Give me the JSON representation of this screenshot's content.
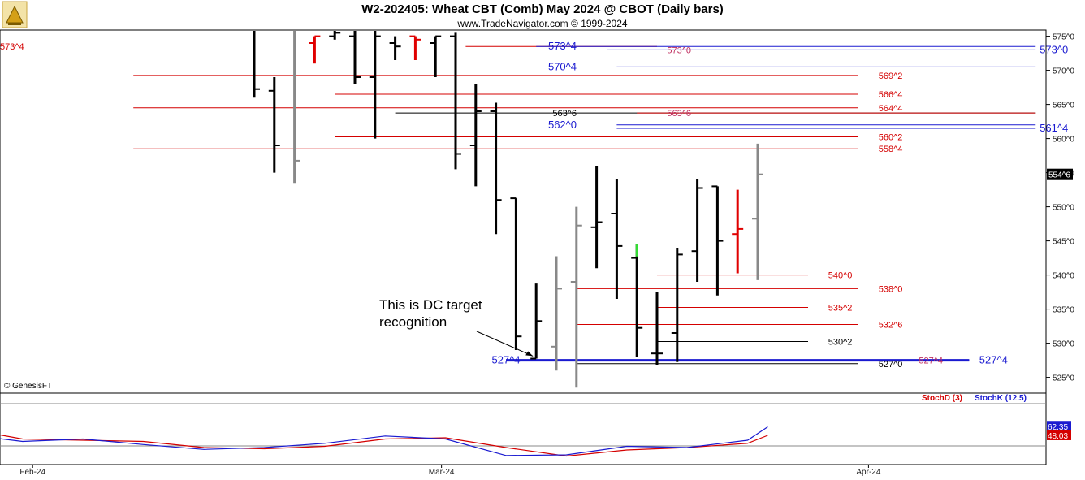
{
  "chart_data": {
    "type": "ohlc",
    "title": "W2-202405:  Wheat CBT (Comb) May 2024 @ CBOT  (Daily bars)",
    "subtitle": "www.TradeNavigator.com © 1999-2024",
    "copyright": "© GenesisFT",
    "ylim": [
      523,
      576
    ],
    "y_ticks": [
      "525^0",
      "530^0",
      "535^0",
      "540^0",
      "545^0",
      "550^0",
      "555^0",
      "560^0",
      "565^0",
      "570^0",
      "575^0"
    ],
    "y_tick_values": [
      525,
      530,
      535,
      540,
      545,
      550,
      555,
      560,
      565,
      570,
      575
    ],
    "x_ticks": [
      {
        "label": "Feb-24",
        "bar": -11
      },
      {
        "label": "Mar-24",
        "bar": 9.3
      },
      {
        "label": "Apr-24",
        "bar": 30.5
      }
    ],
    "last_price_label": "554^6",
    "last_price": 554.75,
    "bars": [
      {
        "bar": 0,
        "open": 577.0,
        "high": 578.0,
        "low": 566.0,
        "close": 567.25,
        "color": "black"
      },
      {
        "bar": 1,
        "open": 567.0,
        "high": 569.0,
        "low": 555.0,
        "close": 559.0,
        "color": "black"
      },
      {
        "bar": 2,
        "open": 576.0,
        "high": 577.0,
        "low": 553.5,
        "close": 556.75,
        "color": "gray"
      },
      {
        "bar": 3,
        "open": 574.0,
        "high": 575.0,
        "low": 571.0,
        "close": 575.0,
        "color": "red"
      },
      {
        "bar": 4,
        "open": 575.0,
        "high": 577.0,
        "low": 574.5,
        "close": 575.5,
        "color": "black"
      },
      {
        "bar": 5,
        "open": 575.0,
        "high": 576.0,
        "low": 568.0,
        "close": 569.0,
        "color": "black"
      },
      {
        "bar": 6,
        "open": 569.0,
        "high": 576.0,
        "low": 560.0,
        "close": 575.0,
        "color": "black"
      },
      {
        "bar": 7,
        "open": 574.0,
        "high": 575.0,
        "low": 571.5,
        "close": 573.5,
        "color": "black"
      },
      {
        "bar": 8,
        "open": 575.0,
        "high": 575.0,
        "low": 571.5,
        "close": 574.5,
        "color": "red"
      },
      {
        "bar": 9,
        "open": 574.0,
        "high": 575.0,
        "low": 569.0,
        "close": 575.0,
        "color": "black"
      },
      {
        "bar": 10,
        "open": 575.0,
        "high": 575.5,
        "low": 555.5,
        "close": 557.75,
        "color": "black"
      },
      {
        "bar": 11,
        "open": 559.0,
        "high": 568.0,
        "low": 553.0,
        "close": 564.0,
        "color": "black"
      },
      {
        "bar": 12,
        "open": 564.0,
        "high": 565.25,
        "low": 546.0,
        "close": 551.0,
        "color": "black"
      },
      {
        "bar": 13,
        "open": 551.25,
        "high": 551.25,
        "low": 529.0,
        "close": 531.0,
        "color": "black"
      },
      {
        "bar": 14,
        "open": 527.75,
        "high": 538.75,
        "low": 527.75,
        "close": 533.25,
        "color": "black"
      },
      {
        "bar": 15,
        "open": 529.5,
        "high": 542.75,
        "low": 526.0,
        "close": 538.0,
        "color": "gray"
      },
      {
        "bar": 16,
        "open": 539.0,
        "high": 550.0,
        "low": 523.5,
        "close": 547.25,
        "color": "gray"
      },
      {
        "bar": 17,
        "open": 547.0,
        "high": 556.0,
        "low": 541.0,
        "close": 547.75,
        "color": "black"
      },
      {
        "bar": 18,
        "open": 549.0,
        "high": 554.0,
        "low": 536.5,
        "close": 544.25,
        "color": "black"
      },
      {
        "bar": 19,
        "open": 542.5,
        "high": 544.5,
        "low": 528.0,
        "close": 532.25,
        "color": "black",
        "highlight": "#33dd33"
      },
      {
        "bar": 20,
        "open": 528.5,
        "high": 537.5,
        "low": 526.75,
        "close": 528.5,
        "color": "black"
      },
      {
        "bar": 21,
        "open": 531.5,
        "high": 544.0,
        "low": 527.25,
        "close": 543.0,
        "color": "black"
      },
      {
        "bar": 22,
        "open": 543.5,
        "high": 554.0,
        "low": 539.0,
        "close": 552.75,
        "color": "black"
      },
      {
        "bar": 23,
        "open": 553.0,
        "high": 553.0,
        "low": 537.0,
        "close": 545.0,
        "color": "black"
      },
      {
        "bar": 24,
        "open": 546.0,
        "high": 552.5,
        "low": 540.25,
        "close": 546.75,
        "color": "red"
      },
      {
        "bar": 25,
        "open": 548.25,
        "high": 559.25,
        "low": 539.25,
        "close": 554.75,
        "color": "gray"
      }
    ],
    "levels": [
      {
        "label": "573^4",
        "price": 573.5,
        "from_bar": 10.5,
        "to_bar": 20.0,
        "color": "#d40000",
        "style": "red"
      },
      {
        "label": "573^4",
        "price": 573.5,
        "from_bar": 14.0,
        "to_bar": 38.8,
        "color": "#1a1ad0",
        "style": "blue",
        "label_at": "left",
        "label_bar": 15.0
      },
      {
        "label": "573^0",
        "price": 573.0,
        "from_bar": 17.5,
        "to_bar": 38.8,
        "color": "#1a1ad0",
        "style": "pink",
        "label_bar": 20.5
      },
      {
        "label": "573^0",
        "price": 573.0,
        "from_bar": 38.8,
        "to_bar": 38.8,
        "color": "#1a1ad0",
        "style": "blue",
        "label_bar": 39.0
      },
      {
        "label": "570^4",
        "price": 570.5,
        "from_bar": 18.0,
        "to_bar": 38.8,
        "color": "#1a1ad0",
        "style": "blue",
        "label_at": "left",
        "label_bar": 15.0
      },
      {
        "label": "569^2",
        "price": 569.25,
        "from_bar": -6.0,
        "to_bar": 30.0,
        "color": "#d40000",
        "style": "red",
        "label_bar": 31.0
      },
      {
        "label": "566^4",
        "price": 566.5,
        "from_bar": 4.0,
        "to_bar": 30.0,
        "color": "#d40000",
        "style": "red",
        "label_bar": 31.0
      },
      {
        "label": "564^4",
        "price": 564.5,
        "from_bar": -6.0,
        "to_bar": 30.0,
        "color": "#d40000",
        "style": "red",
        "label_bar": 31.0
      },
      {
        "label": "563^6",
        "price": 563.75,
        "from_bar": 7.0,
        "to_bar": 38.8,
        "color": "#000",
        "style": "thin",
        "label_at": "left",
        "label_bar": 15.0
      },
      {
        "label": "563^6",
        "price": 563.75,
        "from_bar": 19.0,
        "to_bar": 38.8,
        "color": "#d40000",
        "style": "pink",
        "label_bar": 20.5
      },
      {
        "label": "562^0",
        "price": 562.0,
        "from_bar": 18.0,
        "to_bar": 38.8,
        "color": "#1a1ad0",
        "style": "blue",
        "label_at": "left",
        "label_bar": 15.0
      },
      {
        "label": "561^4",
        "price": 561.5,
        "from_bar": 18.0,
        "to_bar": 38.8,
        "color": "#1a1ad0",
        "style": "blue",
        "label_bar": 39.0
      },
      {
        "label": "560^2",
        "price": 560.25,
        "from_bar": 4.0,
        "to_bar": 30.0,
        "color": "#d40000",
        "style": "red",
        "label_bar": 31.0
      },
      {
        "label": "558^4",
        "price": 558.5,
        "from_bar": -6.0,
        "to_bar": 30.0,
        "color": "#d40000",
        "style": "red",
        "label_bar": 31.0
      },
      {
        "label": "540^0",
        "price": 540.0,
        "from_bar": 20.0,
        "to_bar": 27.5,
        "color": "#d40000",
        "style": "red",
        "label_bar": 28.5
      },
      {
        "label": "538^0",
        "price": 538.0,
        "from_bar": 16.0,
        "to_bar": 30.0,
        "color": "#d40000",
        "style": "red",
        "label_bar": 31.0
      },
      {
        "label": "535^2",
        "price": 535.25,
        "from_bar": 20.0,
        "to_bar": 27.5,
        "color": "#d40000",
        "style": "red",
        "label_bar": 28.5
      },
      {
        "label": "532^6",
        "price": 532.75,
        "from_bar": 16.0,
        "to_bar": 30.0,
        "color": "#d40000",
        "style": "red",
        "label_bar": 31.0
      },
      {
        "label": "530^2",
        "price": 530.25,
        "from_bar": 20.0,
        "to_bar": 27.5,
        "color": "#000",
        "style": "black",
        "label_bar": 28.5
      },
      {
        "label": "527^0",
        "price": 527.0,
        "from_bar": 16.0,
        "to_bar": 30.0,
        "color": "#000",
        "style": "black",
        "label_bar": 31.0
      },
      {
        "label": "527^4",
        "price": 527.5,
        "from_bar": 12.5,
        "to_bar": 35.5,
        "color": "#1a1ad0",
        "style": "thick",
        "label_at": "left",
        "label_bar": 12.2
      },
      {
        "label": "527^4",
        "price": 527.5,
        "from_bar": 32.5,
        "to_bar": 35.5,
        "color": "#1a1ad0",
        "style": "pink",
        "label_bar": 33.0
      },
      {
        "label": "527^4",
        "price": 527.5,
        "from_bar": 35.5,
        "to_bar": 35.5,
        "color": "#1a1ad0",
        "style": "blue",
        "label_bar": 36.0
      }
    ],
    "annotation": {
      "lines": [
        "This is DC target",
        "recognition"
      ],
      "arrow_to_bar": 14,
      "arrow_to_price": 528.0
    },
    "stoch": {
      "legend": [
        {
          "name": "StochD (3)",
          "color": "#d40000"
        },
        {
          "name": "StochK (12.5)",
          "color": "#1a1ad0"
        }
      ],
      "ylim": [
        0,
        100
      ],
      "last_values": [
        {
          "label": "62.35",
          "value": 62.35,
          "color": "#1a1ad0"
        },
        {
          "label": "48.03",
          "value": 48.03,
          "color": "#d40000"
        }
      ],
      "k_bars": [
        -20.5,
        -17.5,
        -14.5,
        -11.5,
        -8.5,
        -5.5,
        -2.5,
        0.5,
        3.5,
        6.5,
        9.5,
        12.5,
        15.5,
        18.5,
        21.5,
        24.5,
        25.5
      ],
      "k": [
        78,
        68,
        50,
        38,
        42,
        33,
        25,
        28,
        35,
        47,
        42,
        15,
        16,
        30,
        28,
        40,
        62
      ],
      "d_values": [
        76,
        72,
        60,
        42,
        40,
        38,
        28,
        26,
        30,
        42,
        44,
        28,
        14,
        24,
        28,
        35,
        48
      ]
    }
  }
}
